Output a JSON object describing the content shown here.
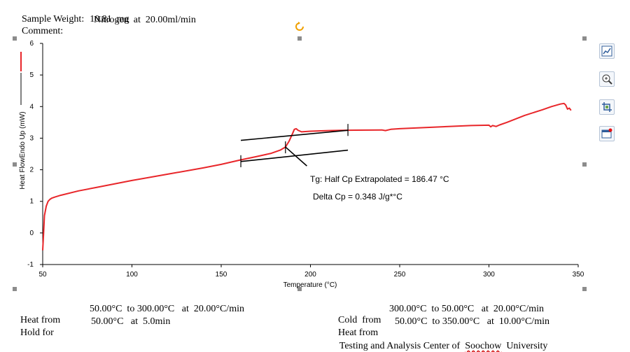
{
  "header": {
    "sample_weight_label": "Sample Weight:",
    "sample_weight_value": "10.81  mg",
    "comment_label": "Comment:",
    "comment_value": "Nitrogen  at  20.00ml/min"
  },
  "footer": {
    "left": [
      {
        "label": "Heat from",
        "text": "50.00°C  to 300.00°C   at  20.00°C/min"
      },
      {
        "label": "Hold for",
        "text": "50.00°C   at  5.0min"
      }
    ],
    "right": [
      {
        "label": "Cold  from",
        "text": "300.00°C  to 50.00°C   at  20.00°C/min"
      },
      {
        "label": "Heat from",
        "text": "50.00°C  to 350.00°C   at  10.00°C/min"
      }
    ],
    "credit_prefix": "Testing and Analysis Center of",
    "credit_university": "Soochow",
    "credit_suffix": "University"
  },
  "toolbar": {
    "icons": [
      "chart-style-icon",
      "zoom-icon",
      "crop-icon",
      "window-icon"
    ]
  },
  "chart_data": {
    "type": "line",
    "xlabel": "Temperature (°C)",
    "ylabel": "Heat FlowEndo Up (mW)",
    "xlim": [
      50,
      350
    ],
    "ylim": [
      -1,
      6
    ],
    "xticks": [
      50,
      100,
      150,
      200,
      250,
      300,
      350
    ],
    "yticks": [
      -1,
      0,
      1,
      2,
      3,
      4,
      5,
      6
    ],
    "grid": false,
    "series_color": "#e8262a",
    "series": [
      {
        "x": [
          50,
          50.5,
          51,
          52,
          53,
          54,
          55,
          57,
          60,
          70,
          80,
          100,
          120,
          140,
          150,
          160,
          170,
          178,
          183,
          186,
          188,
          190,
          191,
          192,
          193,
          195,
          200,
          210,
          220,
          240,
          242,
          245,
          250,
          270,
          290,
          300,
          301,
          302,
          304,
          306,
          310,
          320,
          330,
          335,
          340,
          342,
          343,
          344,
          345,
          346
        ],
        "y": [
          -0.55,
          0.0,
          0.55,
          0.85,
          1.0,
          1.06,
          1.1,
          1.14,
          1.19,
          1.33,
          1.44,
          1.66,
          1.86,
          2.06,
          2.17,
          2.3,
          2.42,
          2.52,
          2.62,
          2.72,
          2.9,
          3.15,
          3.28,
          3.3,
          3.25,
          3.2,
          3.22,
          3.24,
          3.25,
          3.26,
          3.24,
          3.28,
          3.3,
          3.35,
          3.4,
          3.41,
          3.36,
          3.4,
          3.37,
          3.42,
          3.5,
          3.72,
          3.9,
          4.0,
          4.08,
          4.1,
          4.05,
          3.92,
          3.95,
          3.88
        ]
      }
    ],
    "tangent_lines": [
      {
        "x": [
          161,
          221
        ],
        "y": [
          2.93,
          3.25
        ]
      },
      {
        "x": [
          161,
          221
        ],
        "y": [
          2.26,
          2.62
        ]
      }
    ],
    "tick_marks": [
      {
        "x": 161,
        "y": [
          2.08,
          2.46
        ]
      },
      {
        "x": 186,
        "y": [
          2.52,
          2.9
        ]
      },
      {
        "x": 221,
        "y": [
          3.07,
          3.45
        ]
      }
    ],
    "pointer": {
      "x": [
        186,
        198
      ],
      "y": [
        2.72,
        2.12
      ]
    },
    "annotations": [
      {
        "text": "Tg: Half Cp Extrapolated = 186.47 °C"
      },
      {
        "text": "Delta Cp = 0.348 J/g*°C"
      }
    ]
  }
}
